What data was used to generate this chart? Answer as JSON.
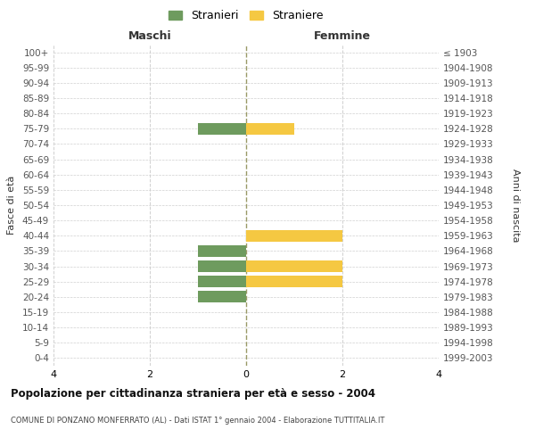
{
  "age_groups": [
    "0-4",
    "5-9",
    "10-14",
    "15-19",
    "20-24",
    "25-29",
    "30-34",
    "35-39",
    "40-44",
    "45-49",
    "50-54",
    "55-59",
    "60-64",
    "65-69",
    "70-74",
    "75-79",
    "80-84",
    "85-89",
    "90-94",
    "95-99",
    "100+"
  ],
  "birth_years": [
    "1999-2003",
    "1994-1998",
    "1989-1993",
    "1984-1988",
    "1979-1983",
    "1974-1978",
    "1969-1973",
    "1964-1968",
    "1959-1963",
    "1954-1958",
    "1949-1953",
    "1944-1948",
    "1939-1943",
    "1934-1938",
    "1929-1933",
    "1924-1928",
    "1919-1923",
    "1914-1918",
    "1909-1913",
    "1904-1908",
    "≤ 1903"
  ],
  "maschi": [
    0,
    0,
    0,
    0,
    1,
    1,
    1,
    1,
    0,
    0,
    0,
    0,
    0,
    0,
    0,
    1,
    0,
    0,
    0,
    0,
    0
  ],
  "femmine": [
    0,
    0,
    0,
    0,
    0,
    2,
    2,
    0,
    2,
    0,
    0,
    0,
    0,
    0,
    0,
    1,
    0,
    0,
    0,
    0,
    0
  ],
  "maschi_color": "#6e9b5e",
  "femmine_color": "#f5c842",
  "xlim": 4,
  "title": "Popolazione per cittadinanza straniera per età e sesso - 2004",
  "subtitle": "COMUNE DI PONZANO MONFERRATO (AL) - Dati ISTAT 1° gennaio 2004 - Elaborazione TUTTITALIA.IT",
  "ylabel_left": "Fasce di età",
  "ylabel_right": "Anni di nascita",
  "legend_maschi": "Stranieri",
  "legend_femmine": "Straniere",
  "maschi_label": "Maschi",
  "femmine_label": "Femmine",
  "bg_color": "#ffffff",
  "grid_color": "#d0d0d0",
  "center_line_color": "#999966",
  "bar_height": 0.75
}
